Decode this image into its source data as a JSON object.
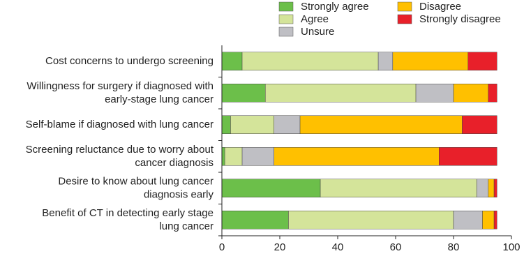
{
  "chart_data": {
    "type": "stacked-barh",
    "categories": [
      [
        "Cost concerns to undergo screening"
      ],
      [
        "Willingness for surgery if diagnosed with",
        "early-stage lung cancer"
      ],
      [
        "Self-blame if diagnosed with lung cancer"
      ],
      [
        "Screening reluctance due to worry about",
        "cancer diagnosis"
      ],
      [
        "Desire to know about lung cancer",
        "diagnosis early"
      ],
      [
        "Benefit of CT in detecting early stage",
        "lung cancer"
      ]
    ],
    "series": [
      {
        "name": "Strongly agree",
        "color": "#6cbf4a",
        "values": [
          7,
          15,
          3,
          1,
          34,
          23
        ]
      },
      {
        "name": "Agree",
        "color": "#d4e49a",
        "values": [
          47,
          52,
          15,
          6,
          54,
          57
        ]
      },
      {
        "name": "Unsure",
        "color": "#bfbfc4",
        "values": [
          5,
          13,
          9,
          11,
          4,
          10
        ]
      },
      {
        "name": "Disagree",
        "color": "#ffc000",
        "values": [
          26,
          12,
          56,
          57,
          2,
          4
        ]
      },
      {
        "name": "Strongly disagree",
        "color": "#e8202a",
        "values": [
          10,
          3,
          12,
          20,
          1,
          1
        ]
      }
    ],
    "xlim": [
      0,
      100
    ],
    "xticks": [
      0,
      20,
      40,
      60,
      80,
      100
    ]
  }
}
